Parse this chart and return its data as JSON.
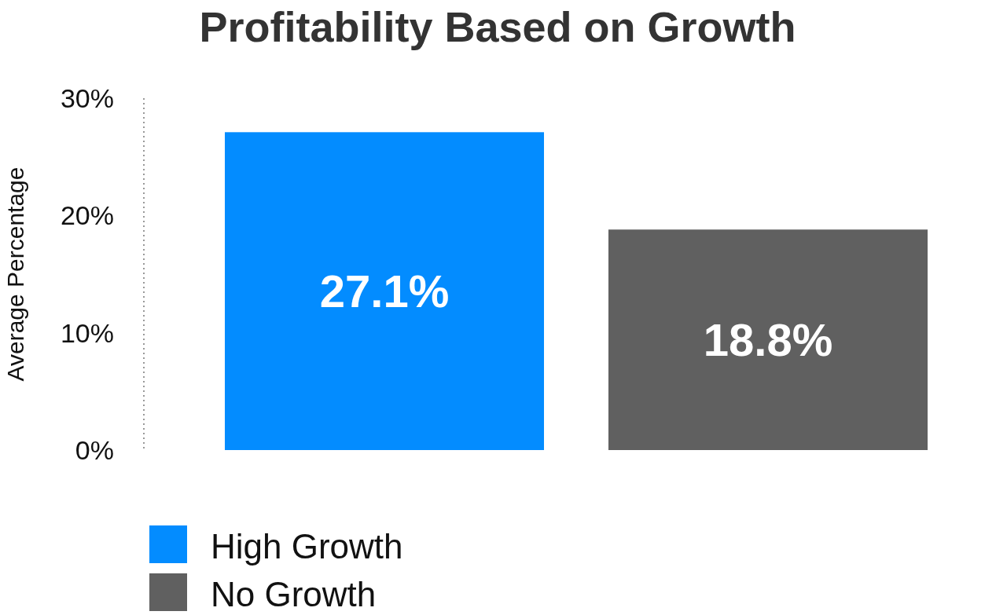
{
  "chart_data": {
    "type": "bar",
    "title": "Profitability Based on Growth",
    "ylabel": "Average Percentage",
    "categories": [
      null
    ],
    "series": [
      {
        "name": "High Growth",
        "color": "#038cff",
        "values": [
          27.1
        ],
        "value_labels": [
          "27.1%"
        ]
      },
      {
        "name": "No Growth",
        "color": "#606060",
        "values": [
          18.8
        ],
        "value_labels": [
          "18.8%"
        ]
      }
    ],
    "ylim": [
      0,
      30
    ],
    "yticks": [
      {
        "value": 0,
        "label": "0%"
      },
      {
        "value": 10,
        "label": "10%"
      },
      {
        "value": 20,
        "label": "20%"
      },
      {
        "value": 30,
        "label": "30%"
      }
    ],
    "grid": false,
    "legend": "bottom left"
  }
}
